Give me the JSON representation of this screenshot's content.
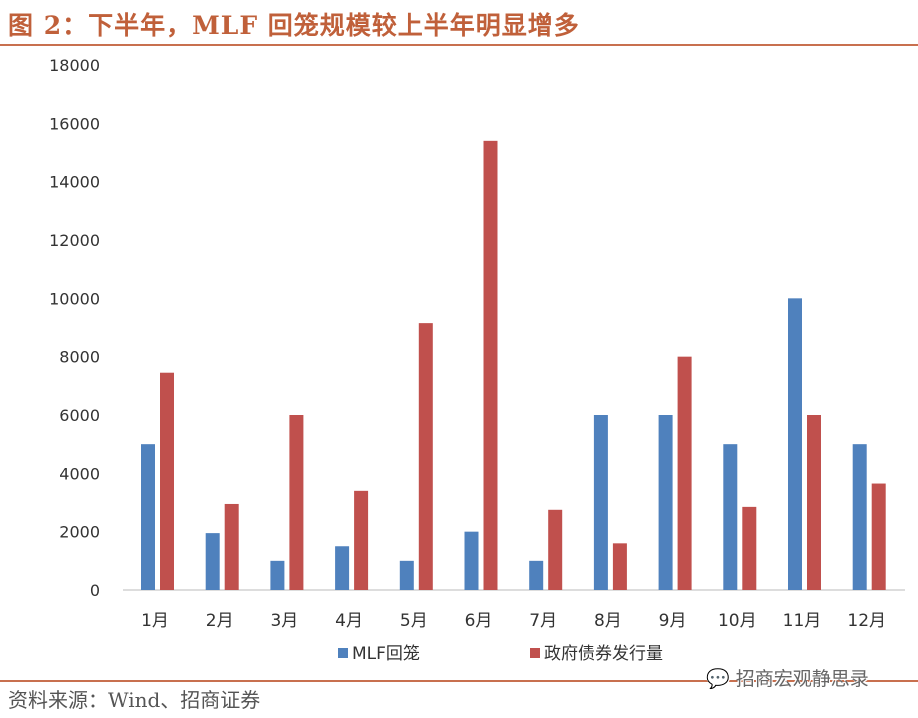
{
  "title": "图 2：下半年，MLF 回笼规模较上半年明显增多",
  "source": "资料来源：Wind、招商证券",
  "watermark": "招商宏观静思录",
  "chart_data": {
    "type": "bar",
    "categories": [
      "1月",
      "2月",
      "3月",
      "4月",
      "5月",
      "6月",
      "7月",
      "8月",
      "9月",
      "10月",
      "11月",
      "12月"
    ],
    "series": [
      {
        "name": "MLF回笼",
        "color": "#4f81bd",
        "values": [
          5000,
          1950,
          1000,
          1500,
          1000,
          2000,
          1000,
          6000,
          6000,
          5000,
          10000,
          5000
        ]
      },
      {
        "name": "政府债券发行量",
        "color": "#c0504d",
        "values": [
          7450,
          2950,
          6000,
          3400,
          9150,
          15400,
          2750,
          1600,
          8000,
          2850,
          6000,
          3650
        ]
      }
    ],
    "ylim": [
      0,
      18000
    ],
    "yticks": [
      0,
      2000,
      4000,
      6000,
      8000,
      10000,
      12000,
      14000,
      16000,
      18000
    ],
    "grid": false,
    "legend": "bottom"
  }
}
